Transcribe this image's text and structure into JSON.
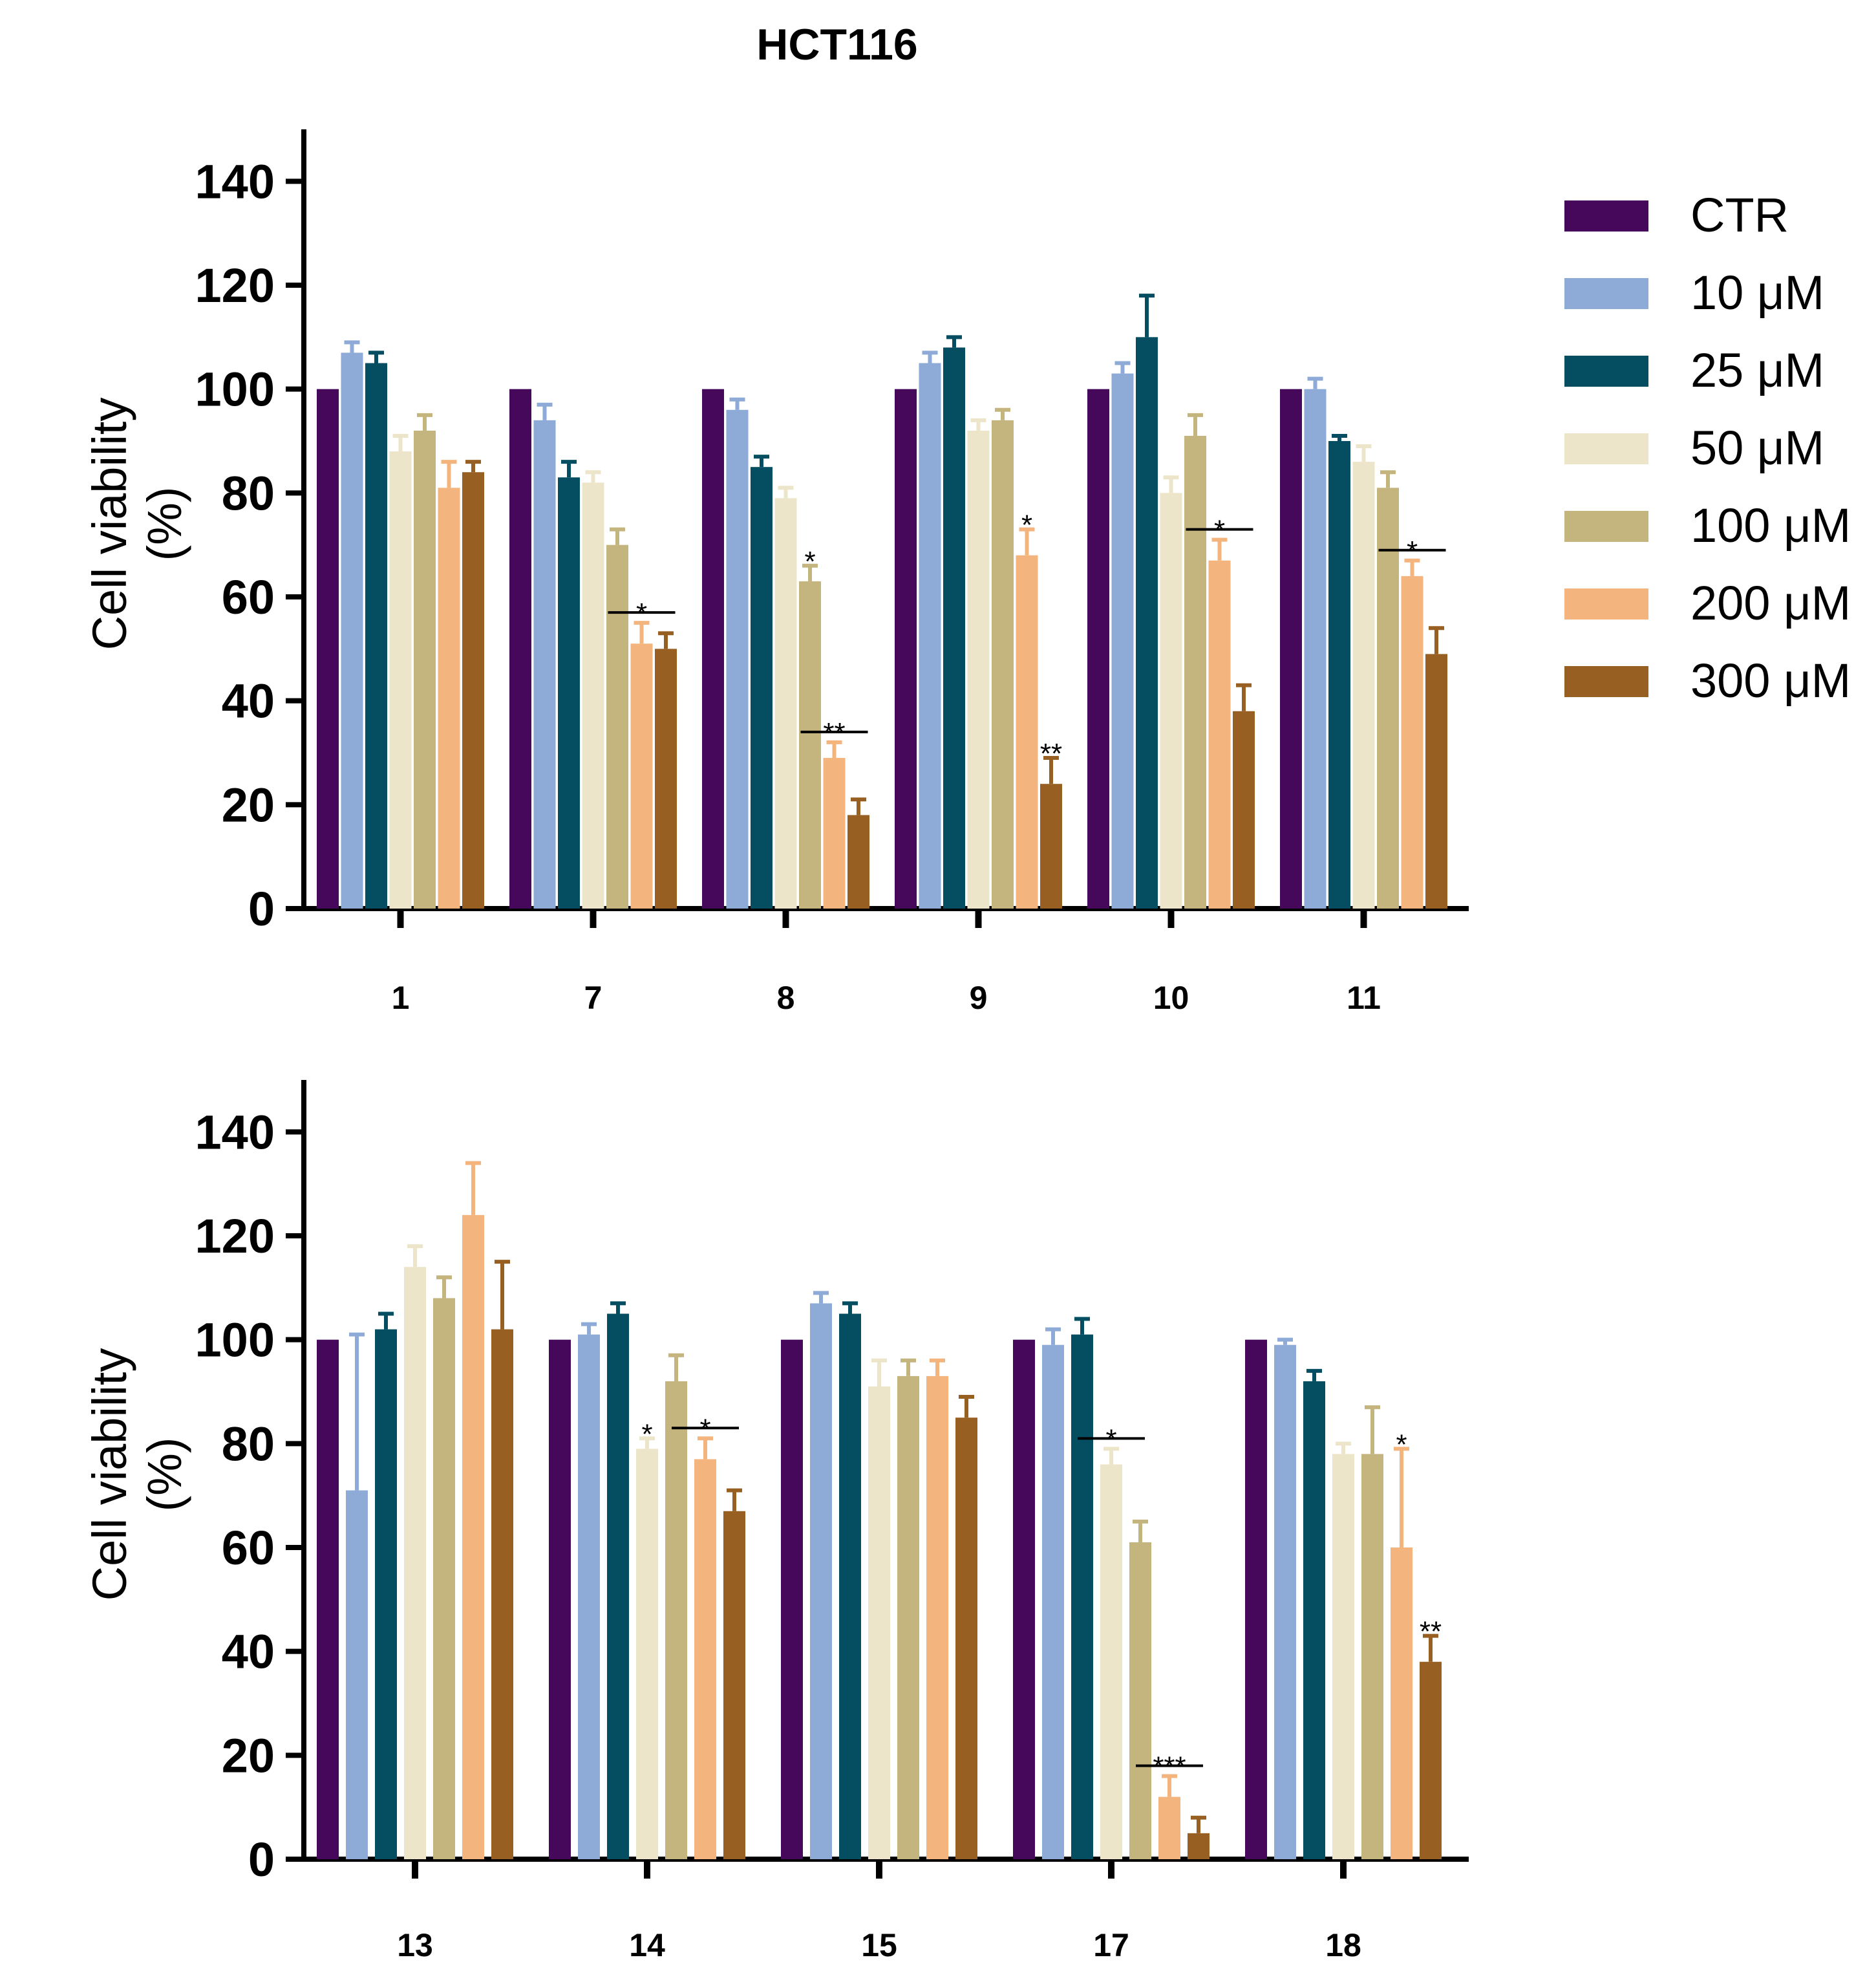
{
  "title": "HCT116",
  "legend": {
    "items": [
      {
        "label": "CTR",
        "color": "#45085a"
      },
      {
        "label": "10 μM",
        "color": "#8eaad6"
      },
      {
        "label": "25 μM",
        "color": "#054e61"
      },
      {
        "label": "50 μM",
        "color": "#ede5c9"
      },
      {
        "label": "100 μM",
        "color": "#c4b57e"
      },
      {
        "label": "200 μM",
        "color": "#f3b57d"
      },
      {
        "label": "300 μM",
        "color": "#975f22"
      }
    ]
  },
  "chart_data": [
    {
      "type": "bar",
      "ylabel_line1": "Cell viability",
      "ylabel_line2": "(%)",
      "ylim": [
        0,
        150
      ],
      "yticks": [
        "0",
        "20",
        "40",
        "60",
        "80",
        "100",
        "120",
        "140"
      ],
      "categories": [
        "1",
        "7",
        "8",
        "9",
        "10",
        "11"
      ],
      "series": [
        {
          "name": "CTR",
          "values": [
            100,
            100,
            100,
            100,
            100,
            100
          ],
          "errors": [
            0,
            0,
            0,
            0,
            0,
            0
          ]
        },
        {
          "name": "10 μM",
          "values": [
            107,
            94,
            96,
            105,
            103,
            100
          ],
          "errors": [
            2,
            3,
            2,
            2,
            2,
            2
          ]
        },
        {
          "name": "25 μM",
          "values": [
            105,
            83,
            85,
            108,
            110,
            90
          ],
          "errors": [
            2,
            3,
            2,
            2,
            8,
            1
          ]
        },
        {
          "name": "50 μM",
          "values": [
            88,
            82,
            79,
            92,
            80,
            86
          ],
          "errors": [
            3,
            2,
            2,
            2,
            3,
            3
          ]
        },
        {
          "name": "100 μM",
          "values": [
            92,
            70,
            63,
            94,
            91,
            81
          ],
          "errors": [
            3,
            3,
            3,
            2,
            4,
            3
          ]
        },
        {
          "name": "200 μM",
          "values": [
            81,
            51,
            29,
            68,
            67,
            64
          ],
          "errors": [
            5,
            4,
            3,
            5,
            4,
            3
          ]
        },
        {
          "name": "300 μM",
          "values": [
            84,
            50,
            18,
            24,
            38,
            49
          ],
          "errors": [
            2,
            3,
            3,
            5,
            5,
            5
          ]
        }
      ],
      "annotations": [
        {
          "category": "7",
          "series": "200 μM",
          "text": "*",
          "bracket": true
        },
        {
          "category": "8",
          "series": "100 μM",
          "text": "*",
          "bracket": false
        },
        {
          "category": "8",
          "series": "200 μM",
          "text": "**",
          "bracket": true
        },
        {
          "category": "9",
          "series": "200 μM",
          "text": "*",
          "bracket": false
        },
        {
          "category": "9",
          "series": "300 μM",
          "text": "**",
          "bracket": false
        },
        {
          "category": "10",
          "series": "200 μM",
          "text": "*",
          "bracket": true
        },
        {
          "category": "11",
          "series": "200 μM",
          "text": "*",
          "bracket": true
        }
      ]
    },
    {
      "type": "bar",
      "ylabel_line1": "Cell viability",
      "ylabel_line2": "(%)",
      "ylim": [
        0,
        150
      ],
      "yticks": [
        "0",
        "20",
        "40",
        "60",
        "80",
        "100",
        "120",
        "140"
      ],
      "categories": [
        "13",
        "14",
        "15",
        "17",
        "18"
      ],
      "series": [
        {
          "name": "CTR",
          "values": [
            100,
            100,
            100,
            100,
            100
          ],
          "errors": [
            0,
            0,
            0,
            0,
            0
          ]
        },
        {
          "name": "10 μM",
          "values": [
            71,
            101,
            107,
            99,
            99
          ],
          "errors": [
            30,
            2,
            2,
            3,
            1
          ]
        },
        {
          "name": "25 μM",
          "values": [
            102,
            105,
            105,
            101,
            92
          ],
          "errors": [
            3,
            2,
            2,
            3,
            2
          ]
        },
        {
          "name": "50 μM",
          "values": [
            114,
            79,
            91,
            76,
            78
          ],
          "errors": [
            4,
            2,
            5,
            3,
            2
          ]
        },
        {
          "name": "100 μM",
          "values": [
            108,
            92,
            93,
            61,
            78
          ],
          "errors": [
            4,
            5,
            3,
            4,
            9
          ]
        },
        {
          "name": "200 μM",
          "values": [
            124,
            77,
            93,
            12,
            60
          ],
          "errors": [
            10,
            4,
            3,
            4,
            19
          ]
        },
        {
          "name": "300 μM",
          "values": [
            102,
            67,
            85,
            5,
            38
          ],
          "errors": [
            13,
            4,
            4,
            3,
            5
          ]
        }
      ],
      "annotations": [
        {
          "category": "14",
          "series": "50 μM",
          "text": "*",
          "bracket": false
        },
        {
          "category": "14",
          "series": "200 μM",
          "text": "*",
          "bracket": true
        },
        {
          "category": "17",
          "series": "50 μM",
          "text": "*",
          "bracket": true
        },
        {
          "category": "17",
          "series": "200 μM",
          "text": "***",
          "bracket": true
        },
        {
          "category": "18",
          "series": "200 μM",
          "text": "*",
          "bracket": false
        },
        {
          "category": "18",
          "series": "300 μM",
          "text": "**",
          "bracket": false
        }
      ]
    }
  ]
}
